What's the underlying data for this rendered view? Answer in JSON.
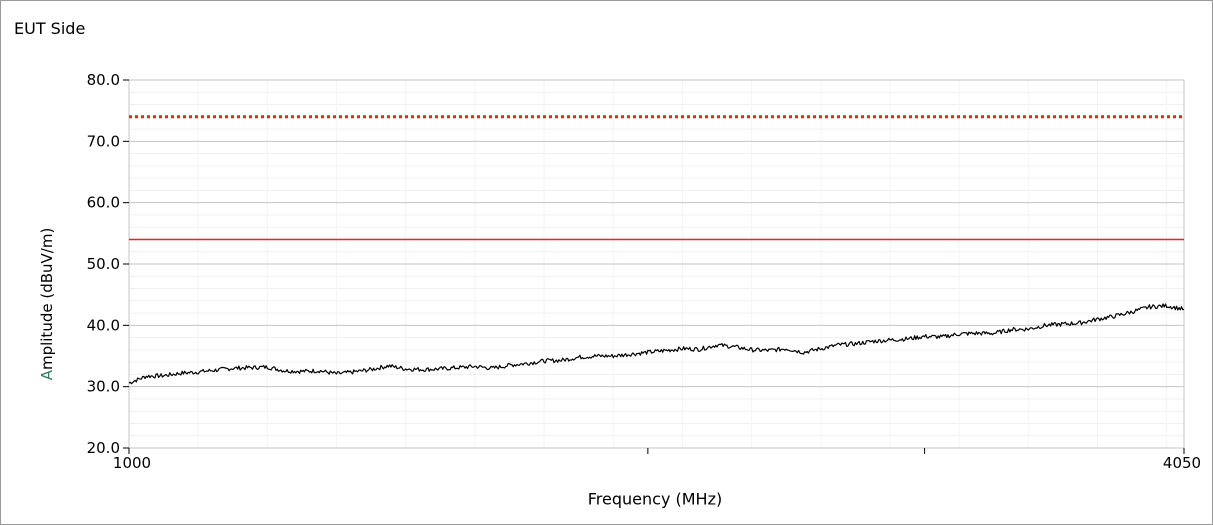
{
  "chart_data": {
    "type": "line",
    "title": "EUT Side",
    "xlabel": "Frequency (MHz)",
    "ylabel_first": "A",
    "ylabel_rest": "mplitude (dBuV/m)",
    "xlim": [
      1000,
      4050
    ],
    "ylim": [
      20,
      80
    ],
    "y_ticks": [
      20,
      30,
      40,
      50,
      60,
      70,
      80
    ],
    "y_tick_labels": [
      "20.0",
      "30.0",
      "40.0",
      "50.0",
      "60.0",
      "70.0",
      "80.0"
    ],
    "x_tick_labels": [
      {
        "value": 1000,
        "label": "1000"
      },
      {
        "value": 2500,
        "label": ""
      },
      {
        "value": 3300,
        "label": ""
      },
      {
        "value": 4050,
        "label": "4050"
      }
    ],
    "grid": true,
    "limits": [
      {
        "value": 74,
        "color": "#e8231f",
        "style": "dotted"
      },
      {
        "value": 54,
        "color": "#e8231f",
        "style": "solid"
      }
    ],
    "series": [
      {
        "color": "#000000",
        "x": [
          1000,
          1050,
          1100,
          1150,
          1200,
          1250,
          1300,
          1350,
          1400,
          1450,
          1500,
          1550,
          1600,
          1650,
          1700,
          1750,
          1800,
          1850,
          1900,
          1950,
          2000,
          2050,
          2100,
          2150,
          2200,
          2250,
          2300,
          2350,
          2400,
          2450,
          2500,
          2550,
          2600,
          2650,
          2700,
          2750,
          2800,
          2850,
          2900,
          2950,
          3000,
          3050,
          3100,
          3150,
          3200,
          3250,
          3300,
          3350,
          3400,
          3450,
          3500,
          3550,
          3600,
          3650,
          3700,
          3750,
          3800,
          3850,
          3900,
          3950,
          4000,
          4050
        ],
        "values": [
          30.6,
          31.7,
          31.8,
          32.2,
          32.4,
          32.7,
          33.0,
          33.1,
          33.2,
          32.6,
          32.5,
          32.6,
          32.1,
          32.4,
          32.8,
          33.4,
          32.9,
          32.8,
          32.9,
          33.1,
          33.3,
          33.0,
          33.5,
          33.8,
          34.2,
          34.3,
          34.8,
          35.0,
          35.0,
          35.3,
          35.6,
          35.9,
          36.2,
          36.1,
          36.8,
          36.5,
          36.0,
          35.9,
          36.2,
          35.6,
          36.2,
          36.8,
          37.0,
          37.4,
          37.6,
          37.8,
          38.2,
          38.1,
          38.6,
          38.7,
          38.7,
          39.3,
          39.4,
          40.0,
          40.2,
          40.4,
          41.0,
          41.5,
          42.2,
          43.0,
          43.2,
          42.6
        ]
      }
    ]
  }
}
